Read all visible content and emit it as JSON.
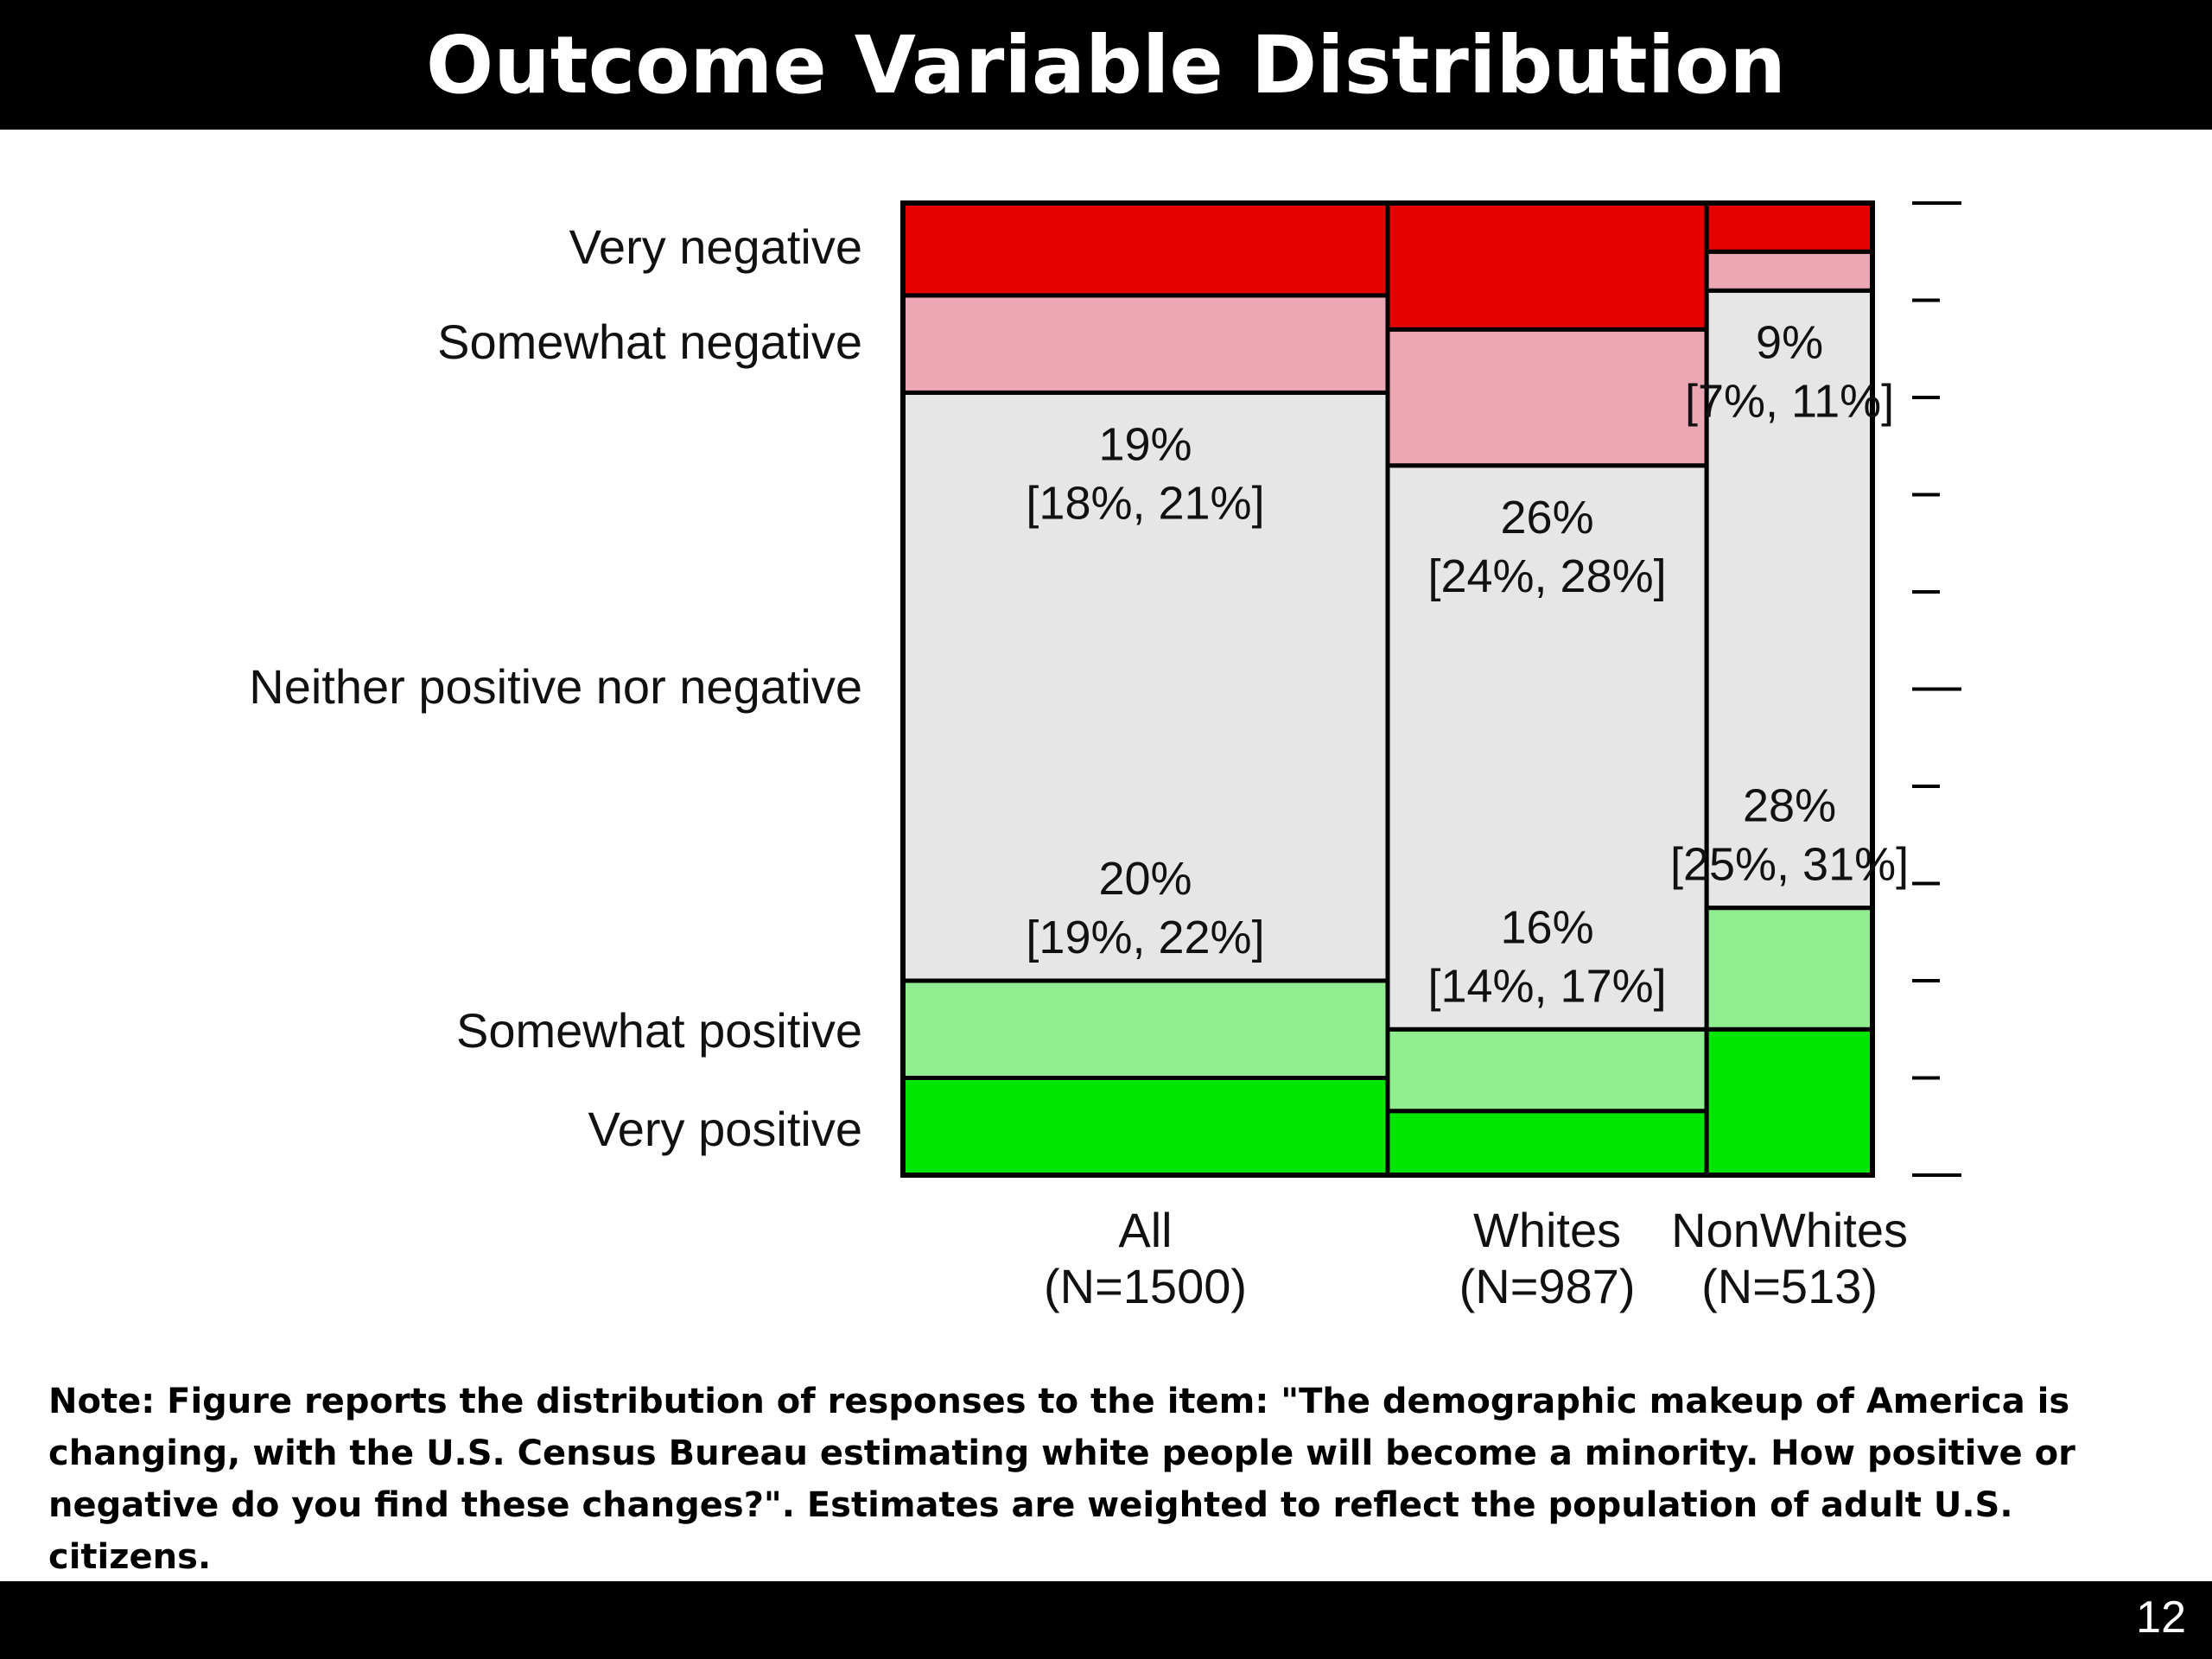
{
  "slide": {
    "title": "Outcome Variable Distribution",
    "note": "Note: Figure reports the distribution of responses to the item: \"The demographic makeup of America is changing, with the U.S. Census Bureau estimating white people will become a minority. How positive or negative do you find these changes?\". Estimates are weighted to reflect the population of adult U.S. citizens.",
    "page_number": "12"
  },
  "chart_data": {
    "type": "bar",
    "stacked": true,
    "normalized": true,
    "categories": [
      {
        "name": "All",
        "n": "(N=1500)"
      },
      {
        "name": "Whites",
        "n": "(N=987)"
      },
      {
        "name": "NonWhites",
        "n": "(N=513)"
      }
    ],
    "category_widths": [
      1500,
      987,
      513
    ],
    "response_levels": [
      "Very positive",
      "Somewhat positive",
      "Neither positive nor negative",
      "Somewhat negative",
      "Very negative"
    ],
    "colors": {
      "Very positive": "#00e600",
      "Somewhat positive": "#90ee90",
      "Neither positive nor negative": "#e6e6e6",
      "Somewhat negative": "#eba8b4",
      "Very negative": "#e60000"
    },
    "series": [
      {
        "name": "Very positive",
        "values": [
          0.1,
          0.066,
          0.15
        ]
      },
      {
        "name": "Somewhat positive",
        "values": [
          0.1,
          0.084,
          0.125
        ]
      },
      {
        "name": "Neither positive nor negative",
        "values": [
          0.605,
          0.58,
          0.635
        ]
      },
      {
        "name": "Somewhat negative",
        "values": [
          0.1,
          0.14,
          0.04
        ]
      },
      {
        "name": "Very negative",
        "values": [
          0.095,
          0.13,
          0.05
        ]
      }
    ],
    "annotations": [
      {
        "category": 0,
        "level": "Neither positive nor negative",
        "position": "top",
        "value": "19%",
        "ci": "[18%, 21%]"
      },
      {
        "category": 0,
        "level": "Neither positive nor negative",
        "position": "bottom",
        "value": "20%",
        "ci": "[19%, 22%]"
      },
      {
        "category": 1,
        "level": "Neither positive nor negative",
        "position": "top",
        "value": "26%",
        "ci": "[24%, 28%]"
      },
      {
        "category": 1,
        "level": "Neither positive nor negative",
        "position": "bottom",
        "value": "16%",
        "ci": "[14%, 17%]"
      },
      {
        "category": 2,
        "level": "Neither positive nor negative",
        "position": "top",
        "value": "9%",
        "ci": "[7%, 11%]"
      },
      {
        "category": 2,
        "level": "Neither positive nor negative",
        "position": "bottom",
        "value": "28%",
        "ci": "[25%, 31%]"
      }
    ],
    "yaxis_labels": [
      "Very negative",
      "Somewhat negative",
      "Neither positive nor negative",
      "Somewhat positive",
      "Very positive"
    ],
    "right_ticks": [
      0,
      0.1,
      0.2,
      0.3,
      0.4,
      0.5,
      0.6,
      0.7,
      0.8,
      0.9,
      1.0
    ],
    "ylim": [
      0,
      1
    ]
  }
}
